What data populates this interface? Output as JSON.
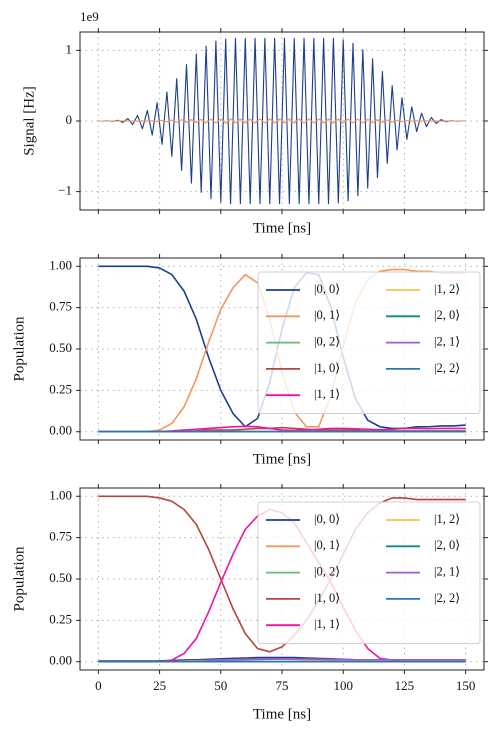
{
  "chart_data": [
    {
      "type": "line",
      "xlabel": "Time [ns]",
      "ylabel": "Signal [Hz]",
      "offset_label": "1e9",
      "x": [
        0,
        2,
        4,
        6,
        8,
        10,
        12,
        14,
        16,
        18,
        20,
        22,
        24,
        26,
        28,
        30,
        32,
        34,
        36,
        38,
        40,
        42,
        44,
        46,
        48,
        50,
        52,
        54,
        56,
        58,
        60,
        62,
        64,
        66,
        68,
        70,
        72,
        74,
        76,
        78,
        80,
        82,
        84,
        86,
        88,
        90,
        92,
        94,
        96,
        98,
        100,
        102,
        104,
        106,
        108,
        110,
        112,
        114,
        116,
        118,
        120,
        122,
        124,
        126,
        128,
        130,
        132,
        134,
        136,
        138,
        140,
        142,
        144,
        146,
        148,
        150
      ],
      "series": [
        {
          "color": "#1c3f8c",
          "values": [
            0,
            -0.001,
            0.002,
            -0.005,
            0.01,
            -0.02,
            0.035,
            -0.05,
            0.08,
            -0.11,
            0.15,
            -0.2,
            0.26,
            -0.33,
            0.41,
            -0.5,
            0.6,
            -0.7,
            0.8,
            -0.88,
            0.95,
            -1.01,
            1.06,
            -1.1,
            1.13,
            -1.15,
            1.16,
            -1.17,
            1.17,
            -1.17,
            1.17,
            -1.17,
            1.17,
            -1.17,
            1.17,
            -1.17,
            1.17,
            -1.17,
            1.17,
            -1.17,
            1.17,
            -1.17,
            1.17,
            -1.17,
            1.17,
            -1.17,
            1.17,
            -1.17,
            1.17,
            -1.16,
            1.15,
            -1.13,
            1.1,
            -1.06,
            1.01,
            -0.95,
            0.88,
            -0.8,
            0.7,
            -0.6,
            0.5,
            -0.41,
            0.33,
            -0.26,
            0.2,
            -0.15,
            0.11,
            -0.08,
            0.05,
            -0.035,
            0.02,
            -0.01,
            0.005,
            -0.002,
            0.001,
            0
          ]
        },
        {
          "color": "#f4965a",
          "values": [
            0,
            0,
            0,
            0,
            0,
            0.001,
            -0.001,
            0.001,
            -0.002,
            0.003,
            -0.004,
            0.005,
            -0.007,
            0.008,
            -0.01,
            0.013,
            -0.015,
            0.018,
            -0.02,
            0.022,
            -0.024,
            0.025,
            -0.027,
            0.028,
            -0.028,
            0.029,
            -0.029,
            0.029,
            -0.029,
            0.029,
            -0.029,
            0.029,
            -0.029,
            0.029,
            -0.029,
            0.029,
            -0.029,
            0.029,
            -0.029,
            0.029,
            -0.029,
            0.029,
            -0.029,
            0.029,
            -0.029,
            0.029,
            -0.029,
            0.029,
            -0.029,
            0.029,
            -0.029,
            0.028,
            -0.028,
            0.027,
            -0.025,
            0.024,
            -0.022,
            0.02,
            -0.018,
            0.015,
            -0.013,
            0.01,
            -0.008,
            0.007,
            -0.005,
            0.004,
            -0.003,
            0.002,
            -0.001,
            0.001,
            -0.001,
            0,
            0,
            0,
            0,
            0
          ]
        }
      ],
      "xlim": [
        -7.5,
        157.5
      ],
      "ylim": [
        -1.26,
        1.26
      ],
      "xticks": [
        0,
        25,
        50,
        75,
        100,
        125,
        150
      ],
      "xtick_labels": false,
      "yticks": [
        {
          "value": -1,
          "label": "−1"
        },
        0,
        1
      ],
      "grid": true
    },
    {
      "type": "line",
      "xlabel": "Time [ns]",
      "ylabel": "Population",
      "x": [
        0,
        5,
        10,
        15,
        20,
        25,
        30,
        35,
        40,
        45,
        50,
        55,
        60,
        65,
        70,
        75,
        80,
        85,
        90,
        95,
        100,
        105,
        110,
        115,
        120,
        125,
        130,
        135,
        140,
        145,
        150
      ],
      "series": [
        {
          "name": "|0, 0⟩",
          "color": "#1c3f8c",
          "values": [
            1,
            1,
            1,
            1,
            1,
            0.99,
            0.95,
            0.85,
            0.68,
            0.45,
            0.25,
            0.11,
            0.03,
            0.08,
            0.3,
            0.62,
            0.87,
            0.96,
            0.95,
            0.75,
            0.45,
            0.2,
            0.07,
            0.03,
            0.02,
            0.02,
            0.03,
            0.03,
            0.035,
            0.035,
            0.04
          ]
        },
        {
          "name": "|0, 1⟩",
          "color": "#f4965a",
          "values": [
            0,
            0,
            0,
            0,
            0,
            0.01,
            0.05,
            0.15,
            0.32,
            0.54,
            0.74,
            0.87,
            0.95,
            0.9,
            0.68,
            0.36,
            0.12,
            0.03,
            0.03,
            0.22,
            0.52,
            0.78,
            0.92,
            0.97,
            0.98,
            0.98,
            0.97,
            0.97,
            0.96,
            0.96,
            0.96
          ]
        },
        {
          "name": "|0, 2⟩",
          "color": "#66bb77",
          "values": [
            0,
            0,
            0,
            0,
            0,
            0,
            0,
            0,
            0,
            0,
            0,
            0,
            0,
            0,
            0,
            0,
            0,
            0,
            0,
            0,
            0,
            0,
            0,
            0,
            0,
            0,
            0,
            0,
            0,
            0,
            0
          ]
        },
        {
          "name": "|1, 0⟩",
          "color": "#b5443a",
          "values": [
            0,
            0,
            0,
            0,
            0,
            0,
            0,
            0,
            0.005,
            0.01,
            0.01,
            0.01,
            0.015,
            0.02,
            0.02,
            0.025,
            0.02,
            0.015,
            0.01,
            0.01,
            0.01,
            0.01,
            0.005,
            0.005,
            0.005,
            0.005,
            0.005,
            0.005,
            0.005,
            0.005,
            0.005
          ]
        },
        {
          "name": "|1, 1⟩",
          "color": "#f012a0",
          "values": [
            0,
            0,
            0,
            0,
            0,
            0.002,
            0.005,
            0.01,
            0.015,
            0.02,
            0.025,
            0.03,
            0.033,
            0.03,
            0.02,
            0.01,
            0.008,
            0.01,
            0.015,
            0.02,
            0.02,
            0.018,
            0.015,
            0.012,
            0.015,
            0.02,
            0.02,
            0.018,
            0.02,
            0.02,
            0.02
          ]
        },
        {
          "name": "|1, 2⟩",
          "color": "#f7c548",
          "values": [
            0,
            0,
            0,
            0,
            0,
            0,
            0,
            0,
            0,
            0,
            0,
            0,
            0,
            0,
            0,
            0,
            0,
            0,
            0,
            0,
            0,
            0,
            0,
            0,
            0,
            0,
            0,
            0,
            0,
            0,
            0
          ]
        },
        {
          "name": "|2, 0⟩",
          "color": "#0f8c80",
          "values": [
            0,
            0,
            0,
            0,
            0,
            0,
            0,
            0,
            0,
            0,
            0,
            0,
            0,
            0,
            0,
            0,
            0,
            0,
            0,
            0,
            0,
            0,
            0,
            0,
            0,
            0,
            0,
            0,
            0,
            0,
            0
          ]
        },
        {
          "name": "|2, 1⟩",
          "color": "#9a5fd6",
          "values": [
            0,
            0,
            0,
            0,
            0,
            0,
            0,
            0,
            0,
            0,
            0,
            0,
            0,
            0,
            0,
            0,
            0,
            0,
            0,
            0,
            0,
            0,
            0,
            0,
            0,
            0,
            0,
            0,
            0,
            0,
            0
          ]
        },
        {
          "name": "|2, 2⟩",
          "color": "#2878b5",
          "values": [
            0,
            0,
            0,
            0,
            0,
            0,
            0,
            0,
            0,
            0,
            0,
            0,
            0,
            0,
            0,
            0,
            0,
            0,
            0,
            0,
            0,
            0,
            0,
            0,
            0,
            0,
            0,
            0,
            0,
            0,
            0
          ]
        }
      ],
      "xlim": [
        -7.5,
        157.5
      ],
      "ylim": [
        -0.05,
        1.05
      ],
      "xticks": [
        0,
        25,
        50,
        75,
        100,
        125,
        150
      ],
      "xtick_labels": false,
      "yticks": [
        {
          "value": 0,
          "label": "0.00"
        },
        {
          "value": 0.25,
          "label": "0.25"
        },
        {
          "value": 0.5,
          "label": "0.50"
        },
        {
          "value": 0.75,
          "label": "0.75"
        },
        {
          "value": 1,
          "label": "1.00"
        }
      ],
      "grid": true,
      "legend": "upper right",
      "legend_ncol": 2
    },
    {
      "type": "line",
      "xlabel": "Time [ns]",
      "ylabel": "Population",
      "x": [
        0,
        5,
        10,
        15,
        20,
        25,
        30,
        35,
        40,
        45,
        50,
        55,
        60,
        65,
        70,
        75,
        80,
        85,
        90,
        95,
        100,
        105,
        110,
        115,
        120,
        125,
        130,
        135,
        140,
        145,
        150
      ],
      "series": [
        {
          "name": "|0, 0⟩",
          "color": "#1c3f8c",
          "values": [
            0.005,
            0.005,
            0.005,
            0.005,
            0.005,
            0.005,
            0.008,
            0.01,
            0.012,
            0.015,
            0.018,
            0.02,
            0.022,
            0.025,
            0.025,
            0.025,
            0.025,
            0.022,
            0.02,
            0.018,
            0.015,
            0.012,
            0.01,
            0.008,
            0.006,
            0.005,
            0.005,
            0.005,
            0.005,
            0.005,
            0.005
          ]
        },
        {
          "name": "|0, 1⟩",
          "color": "#f4965a",
          "values": [
            0,
            0,
            0,
            0,
            0,
            0.001,
            0.002,
            0.004,
            0.006,
            0.008,
            0.01,
            0.012,
            0.014,
            0.015,
            0.015,
            0.015,
            0.014,
            0.012,
            0.01,
            0.009,
            0.008,
            0.008,
            0.007,
            0.007,
            0.006,
            0.006,
            0.006,
            0.006,
            0.006,
            0.006,
            0.006
          ]
        },
        {
          "name": "|0, 2⟩",
          "color": "#66bb77",
          "values": [
            0,
            0,
            0,
            0,
            0,
            0,
            0,
            0,
            0,
            0,
            0,
            0,
            0,
            0,
            0,
            0,
            0,
            0,
            0,
            0,
            0,
            0,
            0,
            0,
            0,
            0,
            0,
            0,
            0,
            0,
            0
          ]
        },
        {
          "name": "|1, 0⟩",
          "color": "#b5443a",
          "values": [
            1,
            1,
            1,
            1,
            1,
            0.99,
            0.97,
            0.92,
            0.83,
            0.68,
            0.5,
            0.32,
            0.17,
            0.08,
            0.06,
            0.09,
            0.16,
            0.25,
            0.37,
            0.5,
            0.65,
            0.8,
            0.9,
            0.96,
            0.99,
            0.99,
            0.98,
            0.98,
            0.98,
            0.98,
            0.98
          ]
        },
        {
          "name": "|1, 1⟩",
          "color": "#f012a0",
          "values": [
            0,
            0,
            0,
            0,
            0,
            0,
            0.01,
            0.05,
            0.14,
            0.3,
            0.48,
            0.65,
            0.8,
            0.88,
            0.92,
            0.9,
            0.84,
            0.72,
            0.6,
            0.48,
            0.33,
            0.19,
            0.08,
            0.02,
            0.01,
            0,
            0,
            0,
            0,
            0,
            0
          ]
        },
        {
          "name": "|1, 2⟩",
          "color": "#f7c548",
          "values": [
            0,
            0,
            0,
            0,
            0,
            0,
            0,
            0,
            0,
            0,
            0,
            0,
            0,
            0,
            0,
            0,
            0,
            0,
            0,
            0,
            0,
            0,
            0,
            0,
            0,
            0,
            0,
            0,
            0,
            0,
            0
          ]
        },
        {
          "name": "|2, 0⟩",
          "color": "#0f8c80",
          "values": [
            0,
            0,
            0,
            0,
            0,
            0,
            0,
            0,
            0,
            0,
            0,
            0,
            0,
            0,
            0,
            0,
            0,
            0,
            0,
            0,
            0,
            0,
            0,
            0,
            0,
            0,
            0,
            0,
            0,
            0,
            0
          ]
        },
        {
          "name": "|2, 1⟩",
          "color": "#9a5fd6",
          "values": [
            0,
            0,
            0,
            0,
            0,
            0,
            0,
            0,
            0.002,
            0.005,
            0.008,
            0.01,
            0.012,
            0.014,
            0.015,
            0.016,
            0.016,
            0.016,
            0.015,
            0.014,
            0.013,
            0.012,
            0.012,
            0.012,
            0.012,
            0.012,
            0.012,
            0.012,
            0.012,
            0.012,
            0.012
          ]
        },
        {
          "name": "|2, 2⟩",
          "color": "#2878b5",
          "values": [
            0,
            0,
            0,
            0,
            0,
            0,
            0,
            0,
            0,
            0,
            0,
            0,
            0,
            0,
            0,
            0,
            0,
            0,
            0,
            0,
            0,
            0,
            0,
            0,
            0,
            0,
            0,
            0,
            0,
            0,
            0
          ]
        }
      ],
      "xlim": [
        -7.5,
        157.5
      ],
      "ylim": [
        -0.05,
        1.05
      ],
      "xticks": [
        0,
        25,
        50,
        75,
        100,
        125,
        150
      ],
      "yticks": [
        {
          "value": 0,
          "label": "0.00"
        },
        {
          "value": 0.25,
          "label": "0.25"
        },
        {
          "value": 0.5,
          "label": "0.50"
        },
        {
          "value": 0.75,
          "label": "0.75"
        },
        {
          "value": 1,
          "label": "1.00"
        }
      ],
      "grid": true,
      "legend": "upper right",
      "legend_ncol": 2
    }
  ]
}
